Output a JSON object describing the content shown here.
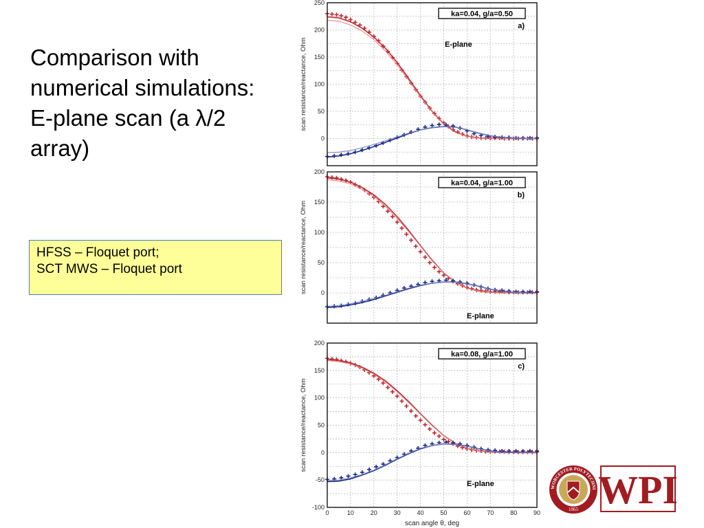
{
  "slide": {
    "title_lines": [
      "Comparison with",
      "numerical simulations:",
      "E-plane scan (a λ/2",
      "array)"
    ],
    "note_lines": [
      "HFSS – Floquet port;",
      "SCT MWS – Floquet port"
    ]
  },
  "colors": {
    "resistance": "#c0282e",
    "resistance_light": "#e0888a",
    "reactance": "#1a2a8a",
    "reactance_light": "#7d86b8",
    "note_bg": "#ffff99",
    "wpi_red": "#a11c21"
  },
  "logo": {
    "text": "WPI",
    "seal_ring_text": "WORCESTER POLYTECHNIC INSTITUTE",
    "seal_year": "1865"
  },
  "chart_data": [
    {
      "type": "line",
      "panel": "a)",
      "annotation": "E-plane",
      "legend_box": "ka=0.04, g/a=0.50",
      "xlabel": "",
      "ylabel": "scan resistance/reactance, Ohm",
      "xlim": [
        0,
        90
      ],
      "ylim": [
        -50,
        250
      ],
      "yticks": [
        0,
        50,
        100,
        150,
        200,
        250
      ],
      "grid": true,
      "series": [
        {
          "role": "resistance-markers",
          "x": [
            0,
            2,
            4,
            6,
            8,
            10,
            12,
            14,
            16,
            18,
            20,
            22,
            24,
            26,
            28,
            30,
            32,
            34,
            36,
            38,
            40,
            42,
            44,
            46,
            48,
            50,
            52,
            54,
            56,
            58,
            60,
            62,
            64,
            66,
            68,
            70,
            72,
            74,
            76,
            78,
            80,
            82,
            84,
            86,
            88,
            90
          ],
          "y": [
            230,
            229,
            228,
            226,
            223,
            219,
            214,
            209,
            203,
            196,
            188,
            180,
            170,
            160,
            149,
            138,
            126,
            114,
            102,
            90,
            78,
            67,
            56,
            46,
            37,
            29,
            22,
            16,
            12,
            8,
            5,
            3,
            2,
            1,
            1,
            1,
            1,
            1,
            0,
            0,
            0,
            0,
            0,
            0,
            0,
            0
          ]
        },
        {
          "role": "resistance-line-1",
          "x": [
            0,
            5,
            10,
            15,
            20,
            25,
            30,
            35,
            40,
            45,
            50,
            55,
            60,
            65,
            70,
            75,
            80,
            85,
            90
          ],
          "y": [
            224,
            222,
            215,
            203,
            187,
            166,
            140,
            110,
            79,
            50,
            27,
            12,
            4,
            1,
            0,
            0,
            0,
            0,
            0
          ]
        },
        {
          "role": "resistance-line-2",
          "x": [
            0,
            5,
            10,
            15,
            20,
            25,
            30,
            35,
            40,
            45,
            50,
            55,
            60,
            65,
            70,
            75,
            80,
            85,
            90
          ],
          "y": [
            218,
            216,
            209,
            198,
            182,
            161,
            136,
            107,
            77,
            49,
            26,
            11,
            4,
            1,
            0,
            0,
            0,
            0,
            0
          ]
        },
        {
          "role": "reactance-markers",
          "x": [
            0,
            3,
            6,
            9,
            12,
            15,
            18,
            21,
            24,
            27,
            30,
            33,
            36,
            39,
            42,
            45,
            48,
            51,
            54,
            57,
            60,
            63,
            66,
            69,
            72,
            75,
            78,
            81,
            84,
            87,
            90
          ],
          "y": [
            -33,
            -32,
            -30,
            -28,
            -25,
            -21,
            -17,
            -13,
            -8,
            -3,
            2,
            7,
            12,
            17,
            21,
            24,
            26,
            25,
            23,
            19,
            14,
            9,
            6,
            4,
            3,
            2,
            2,
            1,
            1,
            1,
            1
          ]
        },
        {
          "role": "reactance-line-1",
          "x": [
            0,
            5,
            10,
            15,
            20,
            25,
            30,
            35,
            40,
            45,
            50,
            55,
            60,
            65,
            70,
            75,
            80,
            85,
            90
          ],
          "y": [
            -34,
            -32,
            -28,
            -22,
            -15,
            -7,
            1,
            9,
            16,
            20,
            22,
            21,
            16,
            10,
            5,
            2,
            1,
            0,
            0
          ]
        },
        {
          "role": "reactance-line-2",
          "x": [
            0,
            5,
            10,
            15,
            20,
            25,
            30,
            35,
            40,
            45,
            50,
            55,
            60,
            65,
            70,
            75,
            80,
            85,
            90
          ],
          "y": [
            -26,
            -25,
            -22,
            -17,
            -11,
            -4,
            3,
            10,
            16,
            20,
            22,
            21,
            16,
            10,
            5,
            2,
            1,
            0,
            0
          ]
        }
      ]
    },
    {
      "type": "line",
      "panel": "b)",
      "annotation": "E-plane",
      "legend_box": "ka=0.04, g/a=1.00",
      "xlabel": "",
      "ylabel": "scan resistance/reactance, Ohm",
      "xlim": [
        0,
        90
      ],
      "ylim": [
        -50,
        200
      ],
      "yticks": [
        0,
        50,
        100,
        150,
        200
      ],
      "grid": true,
      "series": [
        {
          "role": "resistance-markers",
          "x": [
            0,
            2,
            4,
            6,
            8,
            10,
            12,
            14,
            16,
            18,
            20,
            22,
            24,
            26,
            28,
            30,
            32,
            34,
            36,
            38,
            40,
            42,
            44,
            46,
            48,
            50,
            52,
            54,
            56,
            58,
            60,
            62,
            64,
            66,
            68,
            70,
            72,
            74,
            76,
            78,
            80,
            82,
            84,
            86,
            88,
            90
          ],
          "y": [
            192,
            191,
            190,
            188,
            186,
            183,
            179,
            175,
            170,
            164,
            158,
            151,
            143,
            135,
            126,
            117,
            107,
            97,
            87,
            77,
            68,
            59,
            50,
            42,
            35,
            29,
            24,
            19,
            15,
            12,
            9,
            7,
            5,
            4,
            3,
            2,
            2,
            2,
            2,
            1,
            1,
            1,
            1,
            1,
            1,
            1
          ]
        },
        {
          "role": "resistance-line-1",
          "x": [
            0,
            5,
            10,
            15,
            20,
            25,
            30,
            35,
            40,
            45,
            50,
            55,
            60,
            65,
            70,
            75,
            80,
            85,
            90
          ],
          "y": [
            190,
            188,
            183,
            174,
            162,
            146,
            126,
            103,
            78,
            54,
            33,
            18,
            8,
            3,
            1,
            0,
            0,
            0,
            0
          ]
        },
        {
          "role": "resistance-line-2",
          "x": [
            0,
            5,
            10,
            15,
            20,
            25,
            30,
            35,
            40,
            45,
            50,
            55,
            60,
            65,
            70,
            75,
            80,
            85,
            90
          ],
          "y": [
            187,
            185,
            180,
            171,
            159,
            143,
            123,
            101,
            77,
            53,
            33,
            18,
            8,
            3,
            1,
            0,
            0,
            0,
            0
          ]
        },
        {
          "role": "reactance-markers",
          "x": [
            0,
            3,
            6,
            9,
            12,
            15,
            18,
            21,
            24,
            27,
            30,
            33,
            36,
            39,
            42,
            45,
            48,
            51,
            54,
            57,
            60,
            63,
            66,
            69,
            72,
            75,
            78,
            81,
            84,
            87,
            90
          ],
          "y": [
            -23,
            -22,
            -21,
            -19,
            -17,
            -14,
            -11,
            -8,
            -4,
            0,
            4,
            8,
            11,
            14,
            17,
            19,
            20,
            21,
            20,
            18,
            16,
            13,
            10,
            7,
            5,
            4,
            3,
            2,
            2,
            2,
            2
          ]
        },
        {
          "role": "reactance-line-1",
          "x": [
            0,
            5,
            10,
            15,
            20,
            25,
            30,
            35,
            40,
            45,
            50,
            55,
            60,
            65,
            70,
            75,
            80,
            85,
            90
          ],
          "y": [
            -24,
            -23,
            -20,
            -16,
            -11,
            -5,
            1,
            7,
            12,
            16,
            18,
            18,
            15,
            11,
            6,
            3,
            1,
            0,
            0
          ]
        },
        {
          "role": "reactance-line-2",
          "x": [
            0,
            5,
            10,
            15,
            20,
            25,
            30,
            35,
            40,
            45,
            50,
            55,
            60,
            65,
            70,
            75,
            80,
            85,
            90
          ],
          "y": [
            -22,
            -21,
            -18,
            -14,
            -9,
            -4,
            2,
            8,
            13,
            16,
            18,
            18,
            15,
            11,
            6,
            3,
            1,
            0,
            0
          ]
        }
      ]
    },
    {
      "type": "line",
      "panel": "c)",
      "annotation": "E-plane",
      "legend_box": "ka=0.08, g/a=1.00",
      "xlabel": "scan angle θ, deg",
      "ylabel": "scan resistance/reactance, Ohm",
      "xlim": [
        0,
        90
      ],
      "ylim": [
        -100,
        200
      ],
      "xticks": [
        0,
        10,
        20,
        30,
        40,
        50,
        60,
        70,
        80,
        90
      ],
      "yticks": [
        -100,
        -50,
        0,
        50,
        100,
        150,
        200
      ],
      "grid": true,
      "series": [
        {
          "role": "resistance-markers",
          "x": [
            0,
            2,
            4,
            6,
            8,
            10,
            12,
            14,
            16,
            18,
            20,
            22,
            24,
            26,
            28,
            30,
            32,
            34,
            36,
            38,
            40,
            42,
            44,
            46,
            48,
            50,
            52,
            54,
            56,
            58,
            60,
            62,
            64,
            66,
            68,
            70,
            72,
            74,
            76,
            78,
            80,
            82,
            84,
            86,
            88,
            90
          ],
          "y": [
            172,
            171,
            170,
            168,
            166,
            163,
            160,
            156,
            151,
            146,
            140,
            134,
            127,
            119,
            111,
            103,
            94,
            85,
            76,
            67,
            59,
            51,
            43,
            36,
            30,
            24,
            20,
            16,
            12,
            9,
            7,
            5,
            4,
            3,
            2,
            2,
            2,
            2,
            2,
            1,
            1,
            1,
            1,
            1,
            1,
            1
          ]
        },
        {
          "role": "resistance-line-1",
          "x": [
            0,
            5,
            10,
            15,
            20,
            25,
            30,
            35,
            40,
            45,
            50,
            55,
            60,
            65,
            70,
            75,
            80,
            85,
            90
          ],
          "y": [
            170,
            168,
            164,
            156,
            145,
            131,
            113,
            93,
            71,
            50,
            31,
            17,
            8,
            3,
            1,
            0,
            0,
            0,
            0
          ]
        },
        {
          "role": "resistance-line-2",
          "x": [
            0,
            5,
            10,
            15,
            20,
            25,
            30,
            35,
            40,
            45,
            50,
            55,
            60,
            65,
            70,
            75,
            80,
            85,
            90
          ],
          "y": [
            168,
            166,
            162,
            154,
            143,
            129,
            111,
            91,
            70,
            49,
            31,
            17,
            8,
            3,
            1,
            0,
            0,
            0,
            0
          ]
        },
        {
          "role": "reactance-markers",
          "x": [
            0,
            3,
            6,
            9,
            12,
            15,
            18,
            21,
            24,
            27,
            30,
            33,
            36,
            39,
            42,
            45,
            48,
            51,
            54,
            57,
            60,
            63,
            66,
            69,
            72,
            75,
            78,
            81,
            84,
            87,
            90
          ],
          "y": [
            -49,
            -48,
            -46,
            -43,
            -40,
            -36,
            -31,
            -26,
            -21,
            -15,
            -9,
            -3,
            3,
            8,
            13,
            16,
            18,
            19,
            18,
            16,
            13,
            10,
            7,
            5,
            4,
            3,
            3,
            3,
            3,
            3,
            3
          ]
        },
        {
          "role": "reactance-line-1",
          "x": [
            0,
            5,
            10,
            15,
            20,
            25,
            30,
            35,
            40,
            45,
            50,
            55,
            60,
            65,
            70,
            75,
            80,
            85,
            90
          ],
          "y": [
            -53,
            -52,
            -48,
            -41,
            -33,
            -23,
            -12,
            -2,
            7,
            13,
            16,
            15,
            12,
            7,
            3,
            1,
            0,
            0,
            0
          ]
        },
        {
          "role": "reactance-line-2",
          "x": [
            0,
            5,
            10,
            15,
            20,
            25,
            30,
            35,
            40,
            45,
            50,
            55,
            60,
            65,
            70,
            75,
            80,
            85,
            90
          ],
          "y": [
            -51,
            -50,
            -46,
            -40,
            -32,
            -22,
            -11,
            -1,
            8,
            13,
            16,
            15,
            12,
            7,
            3,
            1,
            0,
            0,
            0
          ]
        }
      ]
    }
  ]
}
